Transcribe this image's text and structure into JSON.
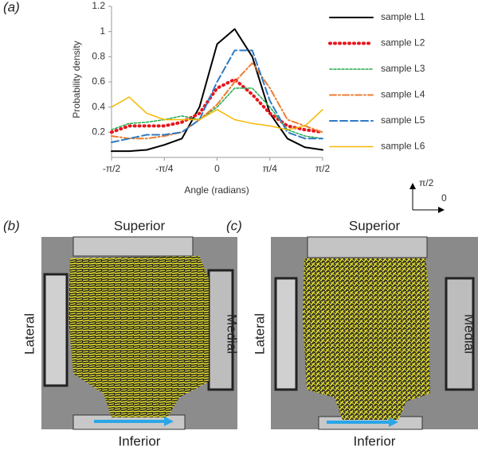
{
  "chart_data": {
    "type": "line",
    "x_label": "Angle (radians)",
    "y_label": "Probability density",
    "xlim": [
      -1.5708,
      1.5708
    ],
    "ylim": [
      0,
      1.2
    ],
    "xticks": [
      {
        "value": -1.5708,
        "label": "-π/2"
      },
      {
        "value": -0.7854,
        "label": "-π/4"
      },
      0,
      {
        "value": 0.7854,
        "label": "π/4"
      },
      {
        "value": 1.5708,
        "label": "π/2"
      }
    ],
    "yticks": [
      0.2,
      0.4,
      0.6,
      0.8,
      1,
      1.2
    ],
    "x": [
      -1.5708,
      -1.309,
      -1.0472,
      -0.7854,
      -0.5236,
      -0.2618,
      0,
      0.2618,
      0.5236,
      0.7854,
      1.0472,
      1.309,
      1.5708
    ],
    "legend": "right",
    "series": [
      {
        "name": "sample L1",
        "color": "#000000",
        "dash": "none",
        "width": 2,
        "values": [
          0.05,
          0.05,
          0.06,
          0.1,
          0.15,
          0.4,
          0.9,
          1.02,
          0.8,
          0.35,
          0.15,
          0.08,
          0.06
        ]
      },
      {
        "name": "sample L2",
        "color": "#e8141c",
        "dash": "1 5",
        "width": 4,
        "values": [
          0.2,
          0.25,
          0.25,
          0.25,
          0.28,
          0.35,
          0.55,
          0.62,
          0.5,
          0.35,
          0.25,
          0.22,
          0.2
        ]
      },
      {
        "name": "sample L3",
        "color": "#22aa4a",
        "dash": "3 2",
        "width": 1.5,
        "values": [
          0.22,
          0.27,
          0.28,
          0.3,
          0.33,
          0.3,
          0.4,
          0.55,
          0.55,
          0.4,
          0.22,
          0.17,
          0.15
        ]
      },
      {
        "name": "sample L4",
        "color": "#ee7d31",
        "dash": "8 3 2 3",
        "width": 2,
        "values": [
          0.17,
          0.15,
          0.15,
          0.17,
          0.2,
          0.3,
          0.42,
          0.6,
          0.75,
          0.55,
          0.3,
          0.25,
          0.2
        ]
      },
      {
        "name": "sample L5",
        "color": "#2e7bc4",
        "dash": "9 4",
        "width": 2,
        "values": [
          0.12,
          0.15,
          0.18,
          0.18,
          0.2,
          0.3,
          0.6,
          0.85,
          0.85,
          0.45,
          0.2,
          0.15,
          0.15
        ]
      },
      {
        "name": "sample L6",
        "color": "#f5b800",
        "dash": "none",
        "width": 1.5,
        "values": [
          0.4,
          0.48,
          0.35,
          0.3,
          0.3,
          0.3,
          0.38,
          0.3,
          0.27,
          0.25,
          0.22,
          0.25,
          0.38
        ]
      }
    ]
  },
  "figure": {
    "panel_a": "(a)",
    "orientation": {
      "up": "π/2",
      "right": "0"
    },
    "panels": [
      {
        "label": "(b)",
        "top": "Superior",
        "bottom": "Inferior",
        "left": "Lateral",
        "right": "Medial"
      },
      {
        "label": "(c)",
        "top": "Superior",
        "bottom": "Inferior",
        "left": "Lateral",
        "right": "Medial"
      }
    ]
  }
}
